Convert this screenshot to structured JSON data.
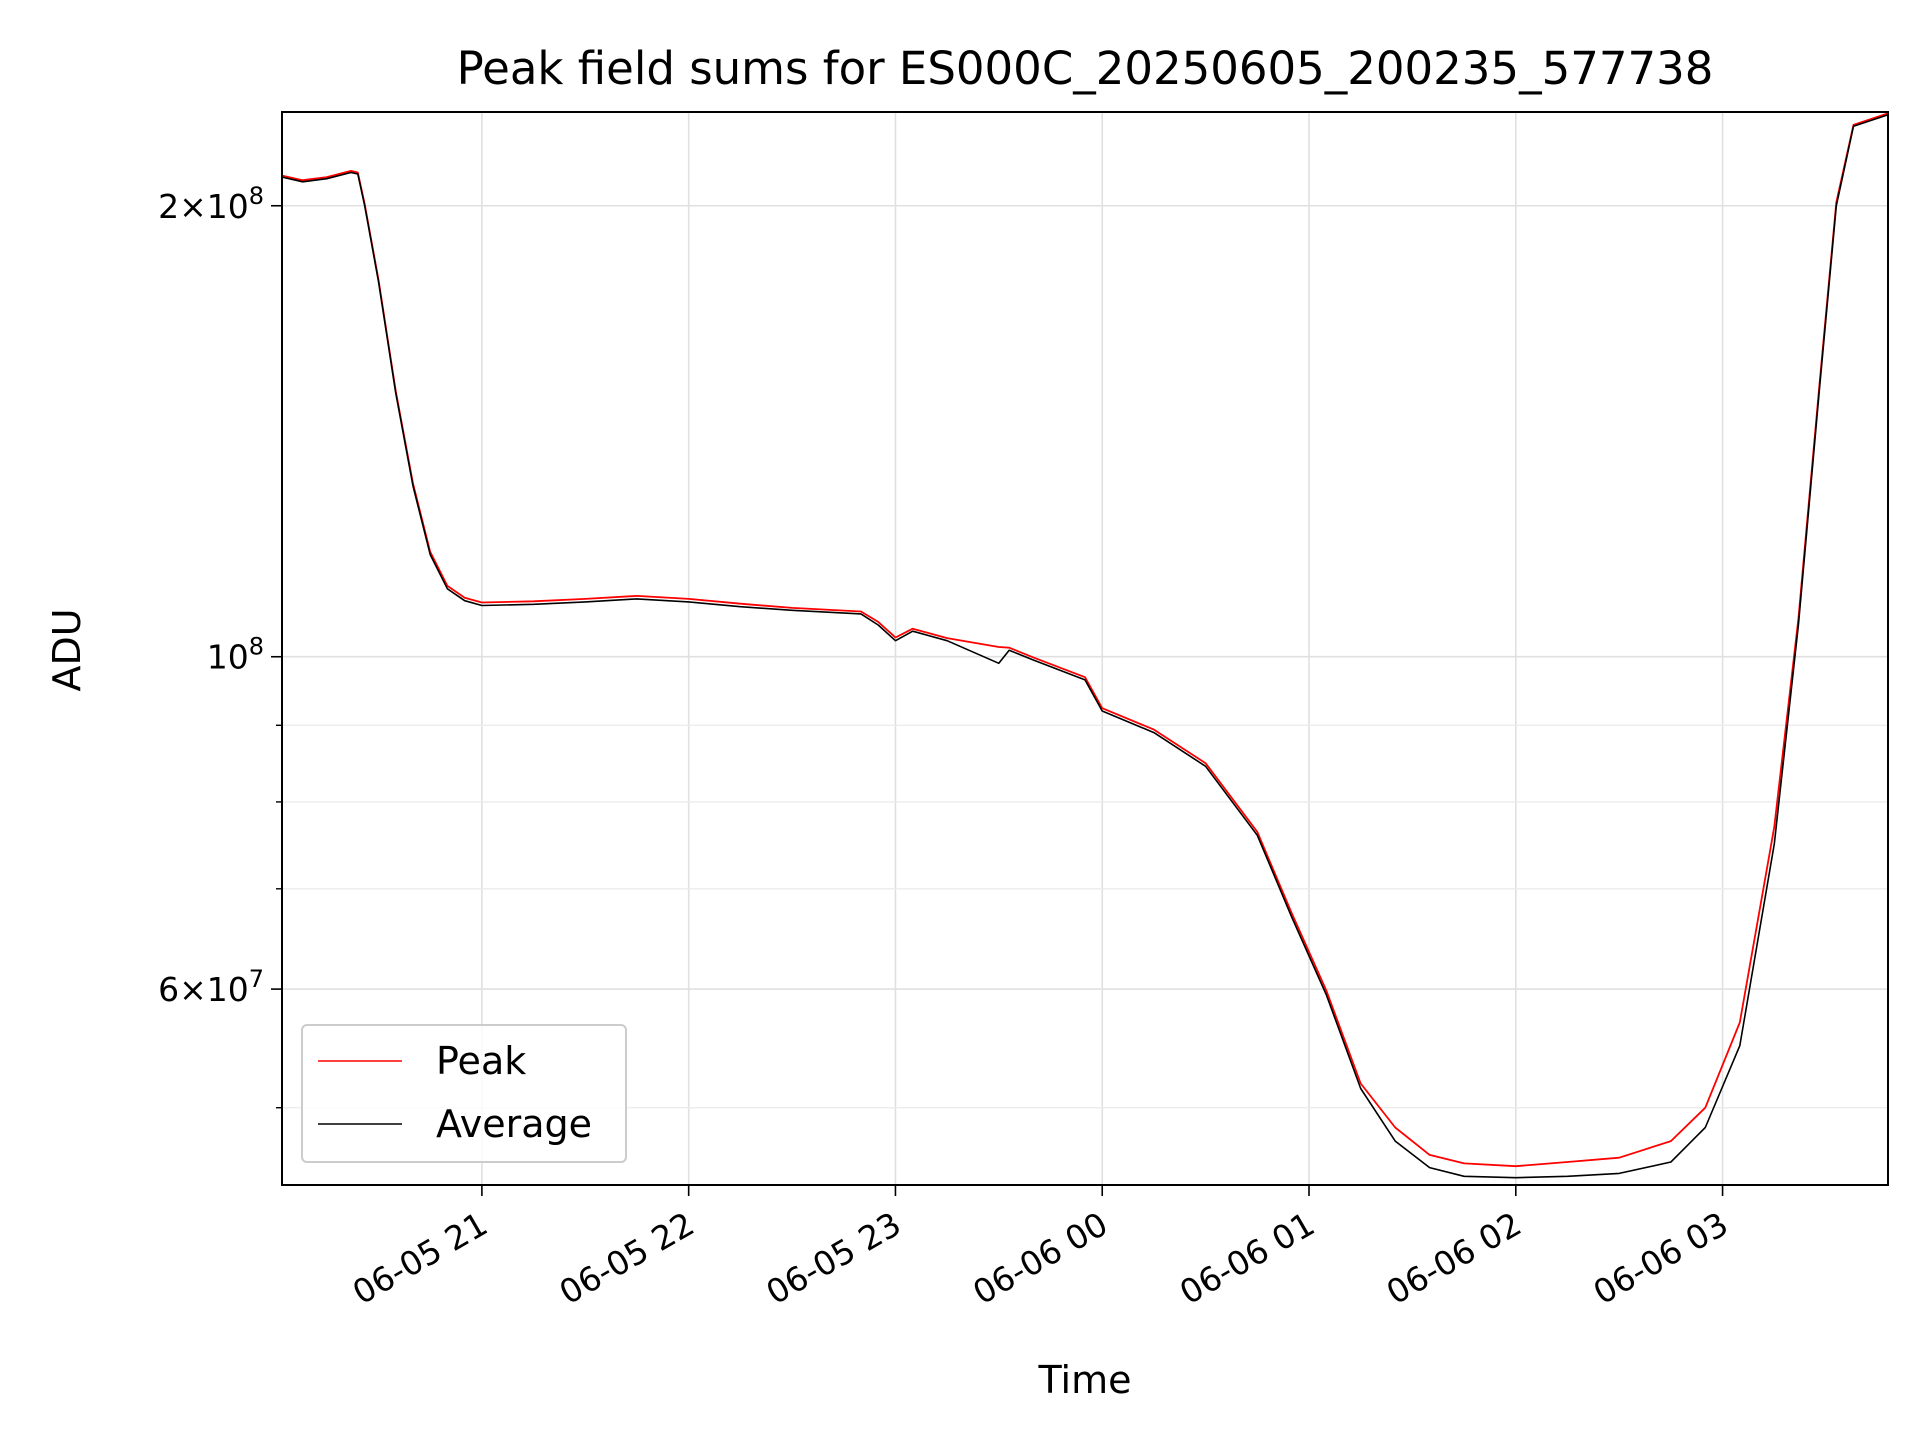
{
  "chart_data": {
    "type": "line",
    "title": "Peak field sums for ES000C_20250605_200235_577738",
    "xlabel": "Time",
    "ylabel": "ADU",
    "yscale": "log",
    "grid": true,
    "legend_position": "lower-left",
    "xlim": [
      "2025-06-05 20:02",
      "2025-06-06 03:48"
    ],
    "ylim": [
      44400000,
      231000000
    ],
    "x_ticks": [
      {
        "t": "2025-06-05 21:00",
        "label": "06-05 21"
      },
      {
        "t": "2025-06-05 22:00",
        "label": "06-05 22"
      },
      {
        "t": "2025-06-05 23:00",
        "label": "06-05 23"
      },
      {
        "t": "2025-06-06 00:00",
        "label": "06-06 00"
      },
      {
        "t": "2025-06-06 01:00",
        "label": "06-06 01"
      },
      {
        "t": "2025-06-06 02:00",
        "label": "06-06 02"
      },
      {
        "t": "2025-06-06 03:00",
        "label": "06-06 03"
      }
    ],
    "y_major_ticks": [
      {
        "value": 200000000,
        "mantissa": "2×10",
        "exp": "8"
      },
      {
        "value": 100000000,
        "mantissa": "10",
        "exp": "8"
      },
      {
        "value": 60000000,
        "mantissa": "6×10",
        "exp": "7"
      }
    ],
    "y_minor_ticks": [
      50000000,
      70000000,
      80000000,
      90000000
    ],
    "series": [
      {
        "name": "Average",
        "color": "#000000",
        "points": [
          [
            "2025-06-05 20:02",
            209000000
          ],
          [
            "2025-06-05 20:08",
            207500000
          ],
          [
            "2025-06-05 20:15",
            208500000
          ],
          [
            "2025-06-05 20:22",
            210500000
          ],
          [
            "2025-06-05 20:24",
            210000000
          ],
          [
            "2025-06-05 20:26",
            200000000
          ],
          [
            "2025-06-05 20:30",
            178000000
          ],
          [
            "2025-06-05 20:35",
            150000000
          ],
          [
            "2025-06-05 20:40",
            130000000
          ],
          [
            "2025-06-05 20:45",
            117000000
          ],
          [
            "2025-06-05 20:50",
            111000000
          ],
          [
            "2025-06-05 20:55",
            109000000
          ],
          [
            "2025-06-05 21:00",
            108200000
          ],
          [
            "2025-06-05 21:15",
            108400000
          ],
          [
            "2025-06-05 21:30",
            108800000
          ],
          [
            "2025-06-05 21:45",
            109300000
          ],
          [
            "2025-06-05 22:00",
            108800000
          ],
          [
            "2025-06-05 22:15",
            108000000
          ],
          [
            "2025-06-05 22:30",
            107400000
          ],
          [
            "2025-06-05 22:50",
            106800000
          ],
          [
            "2025-06-05 22:55",
            105000000
          ],
          [
            "2025-06-05 23:00",
            102500000
          ],
          [
            "2025-06-05 23:05",
            104000000
          ],
          [
            "2025-06-05 23:15",
            102500000
          ],
          [
            "2025-06-05 23:30",
            99000000
          ],
          [
            "2025-06-05 23:33",
            101000000
          ],
          [
            "2025-06-05 23:40",
            99500000
          ],
          [
            "2025-06-05 23:55",
            96500000
          ],
          [
            "2025-06-06 00:00",
            92000000
          ],
          [
            "2025-06-06 00:15",
            89000000
          ],
          [
            "2025-06-06 00:30",
            84500000
          ],
          [
            "2025-06-06 00:45",
            76000000
          ],
          [
            "2025-06-06 00:55",
            67000000
          ],
          [
            "2025-06-06 01:05",
            59500000
          ],
          [
            "2025-06-06 01:15",
            51500000
          ],
          [
            "2025-06-06 01:25",
            47500000
          ],
          [
            "2025-06-06 01:35",
            45600000
          ],
          [
            "2025-06-06 01:45",
            45000000
          ],
          [
            "2025-06-06 02:00",
            44900000
          ],
          [
            "2025-06-06 02:15",
            45000000
          ],
          [
            "2025-06-06 02:30",
            45200000
          ],
          [
            "2025-06-06 02:45",
            46000000
          ],
          [
            "2025-06-06 02:55",
            48500000
          ],
          [
            "2025-06-06 03:05",
            55000000
          ],
          [
            "2025-06-06 03:15",
            75000000
          ],
          [
            "2025-06-06 03:22",
            105000000
          ],
          [
            "2025-06-06 03:28",
            150000000
          ],
          [
            "2025-06-06 03:33",
            200000000
          ],
          [
            "2025-06-06 03:38",
            226000000
          ],
          [
            "2025-06-06 03:48",
            230000000
          ]
        ]
      },
      {
        "name": "Peak",
        "color": "#ff0000",
        "points": [
          [
            "2025-06-05 20:02",
            209500000
          ],
          [
            "2025-06-05 20:08",
            208000000
          ],
          [
            "2025-06-05 20:15",
            209000000
          ],
          [
            "2025-06-05 20:22",
            211000000
          ],
          [
            "2025-06-05 20:24",
            210500000
          ],
          [
            "2025-06-05 20:26",
            200500000
          ],
          [
            "2025-06-05 20:30",
            178500000
          ],
          [
            "2025-06-05 20:35",
            150500000
          ],
          [
            "2025-06-05 20:40",
            130500000
          ],
          [
            "2025-06-05 20:45",
            117500000
          ],
          [
            "2025-06-05 20:50",
            111500000
          ],
          [
            "2025-06-05 20:55",
            109500000
          ],
          [
            "2025-06-05 21:00",
            108700000
          ],
          [
            "2025-06-05 21:15",
            108900000
          ],
          [
            "2025-06-05 21:30",
            109300000
          ],
          [
            "2025-06-05 21:45",
            109800000
          ],
          [
            "2025-06-05 22:00",
            109300000
          ],
          [
            "2025-06-05 22:15",
            108500000
          ],
          [
            "2025-06-05 22:30",
            107800000
          ],
          [
            "2025-06-05 22:50",
            107200000
          ],
          [
            "2025-06-05 22:55",
            105500000
          ],
          [
            "2025-06-05 23:00",
            103000000
          ],
          [
            "2025-06-05 23:05",
            104400000
          ],
          [
            "2025-06-05 23:15",
            102900000
          ],
          [
            "2025-06-05 23:30",
            101500000
          ],
          [
            "2025-06-05 23:33",
            101400000
          ],
          [
            "2025-06-05 23:40",
            99900000
          ],
          [
            "2025-06-05 23:55",
            96900000
          ],
          [
            "2025-06-06 00:00",
            92400000
          ],
          [
            "2025-06-06 00:15",
            89400000
          ],
          [
            "2025-06-06 00:30",
            84900000
          ],
          [
            "2025-06-06 00:45",
            76400000
          ],
          [
            "2025-06-06 00:55",
            67400000
          ],
          [
            "2025-06-06 01:05",
            59900000
          ],
          [
            "2025-06-06 01:15",
            51900000
          ],
          [
            "2025-06-06 01:25",
            48500000
          ],
          [
            "2025-06-06 01:35",
            46500000
          ],
          [
            "2025-06-06 01:45",
            45900000
          ],
          [
            "2025-06-06 02:00",
            45700000
          ],
          [
            "2025-06-06 02:15",
            46000000
          ],
          [
            "2025-06-06 02:30",
            46300000
          ],
          [
            "2025-06-06 02:45",
            47500000
          ],
          [
            "2025-06-06 02:55",
            50000000
          ],
          [
            "2025-06-06 03:05",
            57000000
          ],
          [
            "2025-06-06 03:15",
            77000000
          ],
          [
            "2025-06-06 03:22",
            106000000
          ],
          [
            "2025-06-06 03:28",
            151000000
          ],
          [
            "2025-06-06 03:33",
            201000000
          ],
          [
            "2025-06-06 03:38",
            226500000
          ],
          [
            "2025-06-06 03:48",
            230500000
          ]
        ]
      }
    ],
    "legend": [
      {
        "label": "Peak",
        "color": "#ff0000"
      },
      {
        "label": "Average",
        "color": "#000000"
      }
    ]
  }
}
